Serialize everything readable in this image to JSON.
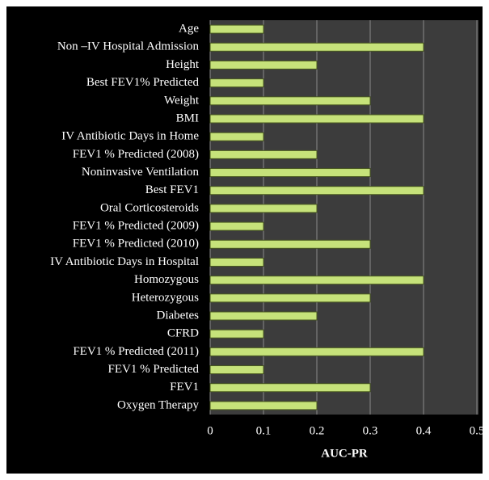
{
  "chart_data": {
    "type": "bar",
    "orientation": "horizontal",
    "x_label": "AUC-PR",
    "categories": [
      "Age",
      "Non –IV Hospital Admission",
      "Height",
      "Best FEV1% Predicted",
      "Weight",
      "BMI",
      "IV Antibiotic Days in Home",
      "FEV1 % Predicted (2008)",
      "Noninvasive Ventilation",
      "Best FEV1",
      "Oral Corticosteroids",
      "FEV1 % Predicted (2009)",
      "FEV1 % Predicted (2010)",
      "IV Antibiotic Days in Hospital",
      "Homozygous",
      "Heterozygous",
      "Diabetes",
      "CFRD",
      "FEV1 % Predicted (2011)",
      "FEV1 % Predicted",
      "FEV1",
      "Oxygen Therapy"
    ],
    "values": [
      0.1,
      0.4,
      0.2,
      0.1,
      0.3,
      0.4,
      0.1,
      0.2,
      0.3,
      0.4,
      0.2,
      0.1,
      0.3,
      0.1,
      0.4,
      0.3,
      0.2,
      0.1,
      0.4,
      0.1,
      0.3,
      0.2
    ],
    "color": "#c6e27a",
    "xlim": [
      0,
      0.5
    ],
    "xticks": [
      0,
      0.1,
      0.2,
      0.3,
      0.4,
      0.5
    ],
    "grid": true
  }
}
